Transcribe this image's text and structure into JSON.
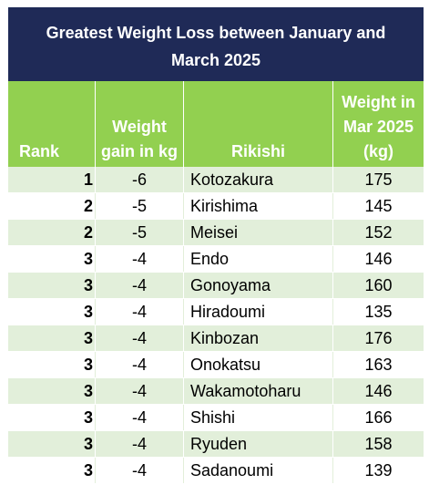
{
  "table": {
    "title_line1": "Greatest Weight Loss between January and",
    "title_line2": "March 2025",
    "headers": {
      "rank": "Rank",
      "gain_line1": "Weight",
      "gain_line2": "gain in kg",
      "rikishi": "Rikishi",
      "weight_line1": "Weight in",
      "weight_line2": "Mar 2025",
      "weight_line3": "(kg)"
    },
    "colors": {
      "title_bg": "#1f2a57",
      "header_bg": "#92d050",
      "alt_row_bg": "#e2efda"
    },
    "rows": [
      {
        "rank": "1",
        "gain": "-6",
        "rikishi": "Kotozakura",
        "weight": "175"
      },
      {
        "rank": "2",
        "gain": "-5",
        "rikishi": "Kirishima",
        "weight": "145"
      },
      {
        "rank": "2",
        "gain": "-5",
        "rikishi": "Meisei",
        "weight": "152"
      },
      {
        "rank": "3",
        "gain": "-4",
        "rikishi": "Endo",
        "weight": "146"
      },
      {
        "rank": "3",
        "gain": "-4",
        "rikishi": "Gonoyama",
        "weight": "160"
      },
      {
        "rank": "3",
        "gain": "-4",
        "rikishi": "Hiradoumi",
        "weight": "135"
      },
      {
        "rank": "3",
        "gain": "-4",
        "rikishi": "Kinbozan",
        "weight": "176"
      },
      {
        "rank": "3",
        "gain": "-4",
        "rikishi": "Onokatsu",
        "weight": "163"
      },
      {
        "rank": "3",
        "gain": "-4",
        "rikishi": "Wakamotoharu",
        "weight": "146"
      },
      {
        "rank": "3",
        "gain": "-4",
        "rikishi": "Shishi",
        "weight": "166"
      },
      {
        "rank": "3",
        "gain": "-4",
        "rikishi": "Ryuden",
        "weight": "158"
      },
      {
        "rank": "3",
        "gain": "-4",
        "rikishi": "Sadanoumi",
        "weight": "139"
      }
    ]
  }
}
